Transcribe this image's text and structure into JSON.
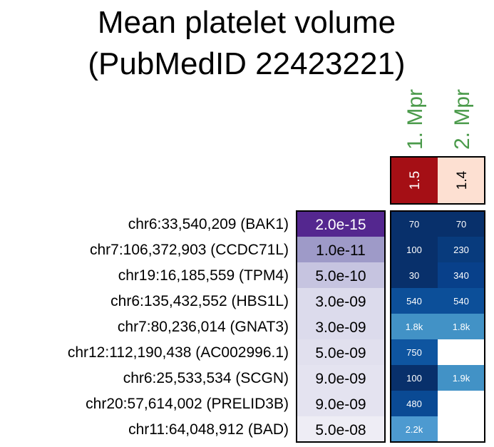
{
  "chart_data": {
    "type": "heatmap",
    "title": [
      "Mean platelet volume",
      "(PubMedID 22423221)"
    ],
    "columns": [
      {
        "label": "1. Mpr",
        "header_value": "1.5",
        "header_color": "#a50f15"
      },
      {
        "label": "2. Mpr",
        "header_value": "1.4",
        "header_color": "#fde0d2"
      }
    ],
    "rows": [
      {
        "label": "chr6:33,540,209 (BAK1)",
        "pvalue": "2.0e-15",
        "pcolor": "#54278f",
        "cells": [
          "70",
          "70"
        ],
        "cell_colors": [
          "#08306b",
          "#08306b"
        ]
      },
      {
        "label": "chr7:106,372,903 (CCDC71L)",
        "pvalue": "1.0e-11",
        "pcolor": "#9e9ac8",
        "cells": [
          "100",
          "230"
        ],
        "cell_colors": [
          "#08306b",
          "#083b7d"
        ]
      },
      {
        "label": "chr19:16,185,559 (TPM4)",
        "pvalue": "5.0e-10",
        "pcolor": "#c6c4e0",
        "cells": [
          "30",
          "340"
        ],
        "cell_colors": [
          "#08306b",
          "#08408a"
        ]
      },
      {
        "label": "chr6:135,432,552 (HBS1L)",
        "pvalue": "3.0e-09",
        "pcolor": "#dcdbec",
        "cells": [
          "540",
          "540"
        ],
        "cell_colors": [
          "#0c4f99",
          "#0c4f99"
        ]
      },
      {
        "label": "chr7:80,236,014 (GNAT3)",
        "pvalue": "3.0e-09",
        "pcolor": "#dcdbec",
        "cells": [
          "1.8k",
          "1.8k"
        ],
        "cell_colors": [
          "#4292c6",
          "#4292c6"
        ]
      },
      {
        "label": "chr12:112,190,438 (AC002996.1)",
        "pvalue": "5.0e-09",
        "pcolor": "#e1e0ee",
        "cells": [
          "750",
          ""
        ],
        "cell_colors": [
          "#0e55a0",
          "#ffffff"
        ]
      },
      {
        "label": "chr6:25,533,534 (SCGN)",
        "pvalue": "9.0e-09",
        "pcolor": "#e4e3f0",
        "cells": [
          "100",
          "1.9k"
        ],
        "cell_colors": [
          "#08306b",
          "#4292c6"
        ]
      },
      {
        "label": "chr20:57,614,002 (PRELID3B)",
        "pvalue": "9.0e-09",
        "pcolor": "#e4e3f0",
        "cells": [
          "480",
          ""
        ],
        "cell_colors": [
          "#0a4a94",
          "#ffffff"
        ]
      },
      {
        "label": "chr11:64,048,912 (BAD)",
        "pvalue": "5.0e-08",
        "pcolor": "#eeedf5",
        "cells": [
          "2.2k",
          ""
        ],
        "cell_colors": [
          "#4d9ad0",
          "#ffffff"
        ]
      }
    ]
  }
}
